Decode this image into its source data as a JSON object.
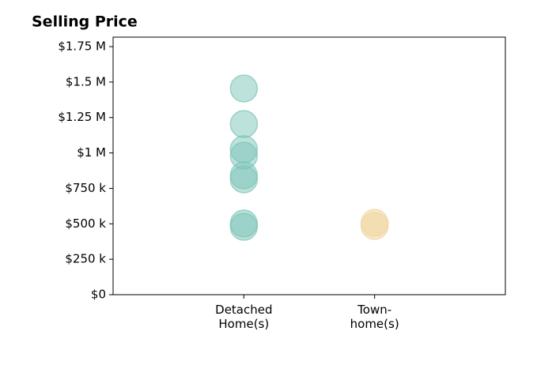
{
  "chart_data": {
    "type": "strip",
    "title": "Selling Price",
    "categories": [
      "Detached\nHome(s)",
      "Town-\nhome(s)"
    ],
    "series": [
      {
        "color": "#7cc4b8",
        "values": [
          1455000,
          1204000,
          1026000,
          981000,
          842000,
          814000,
          502000,
          479000
        ]
      },
      {
        "color": "#f0d49c",
        "values": [
          507000,
          485000
        ]
      }
    ],
    "ylim": [
      0,
      1817000
    ],
    "yticks": [
      {
        "value": 0,
        "label": "$0"
      },
      {
        "value": 250000,
        "label": "$250 k"
      },
      {
        "value": 500000,
        "label": "$500 k"
      },
      {
        "value": 750000,
        "label": "$750 k"
      },
      {
        "value": 1000000,
        "label": "$1 M"
      },
      {
        "value": 1250000,
        "label": "$1.25 M"
      },
      {
        "value": 1500000,
        "label": "$1.5 M"
      },
      {
        "value": 1750000,
        "label": "$1.75 M"
      }
    ],
    "grid": false
  }
}
